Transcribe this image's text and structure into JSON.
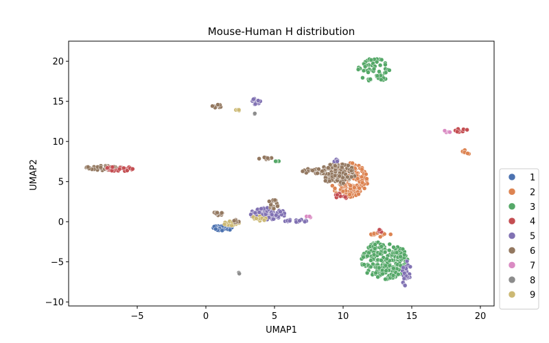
{
  "chart_data": {
    "type": "scatter",
    "title": "Mouse-Human H distribution",
    "xlabel": "UMAP1",
    "ylabel": "UMAP2",
    "xlim": [
      -10,
      21
    ],
    "ylim": [
      -10.5,
      22.5
    ],
    "xticks": [
      -5,
      0,
      5,
      10,
      15,
      20
    ],
    "yticks": [
      -10,
      -5,
      0,
      5,
      10,
      15,
      20
    ],
    "legend_position": "lower-right outside",
    "categories": [
      {
        "name": "1",
        "color": "#4c72b0"
      },
      {
        "name": "2",
        "color": "#dd8452"
      },
      {
        "name": "3",
        "color": "#55a868"
      },
      {
        "name": "4",
        "color": "#c44e52"
      },
      {
        "name": "5",
        "color": "#8172b3"
      },
      {
        "name": "6",
        "color": "#937860"
      },
      {
        "name": "7",
        "color": "#da8bc3"
      },
      {
        "name": "8",
        "color": "#8c8c8c"
      },
      {
        "name": "9",
        "color": "#ccb974"
      }
    ],
    "clusters": [
      {
        "category": "3",
        "cx": 12.3,
        "cy": 18.9,
        "rx": 1.2,
        "ry": 1.6,
        "n": 60
      },
      {
        "category": "6",
        "cx": 0.8,
        "cy": 14.4,
        "rx": 0.4,
        "ry": 0.25,
        "n": 8
      },
      {
        "category": "9",
        "cx": 2.5,
        "cy": 13.9,
        "rx": 0.4,
        "ry": 0.1,
        "n": 4
      },
      {
        "category": "5",
        "cx": 3.7,
        "cy": 15.0,
        "rx": 0.45,
        "ry": 0.4,
        "n": 12
      },
      {
        "category": "8",
        "cx": 3.6,
        "cy": 13.4,
        "rx": 0.1,
        "ry": 0.1,
        "n": 2
      },
      {
        "category": "7",
        "cx": 17.4,
        "cy": 11.2,
        "rx": 0.5,
        "ry": 0.3,
        "n": 4
      },
      {
        "category": "4",
        "cx": 18.6,
        "cy": 11.4,
        "rx": 0.5,
        "ry": 0.3,
        "n": 10
      },
      {
        "category": "2",
        "cx": 18.9,
        "cy": 8.6,
        "rx": 0.3,
        "ry": 0.35,
        "n": 8
      },
      {
        "category": "6",
        "cx": -7.5,
        "cy": 6.7,
        "rx": 1.4,
        "ry": 0.3,
        "n": 40
      },
      {
        "category": "4",
        "cx": -6.2,
        "cy": 6.6,
        "rx": 1.1,
        "ry": 0.3,
        "n": 25
      },
      {
        "category": "6",
        "cx": 4.3,
        "cy": 7.9,
        "rx": 0.6,
        "ry": 0.15,
        "n": 8
      },
      {
        "category": "3",
        "cx": 5.1,
        "cy": 7.5,
        "rx": 0.3,
        "ry": 0.1,
        "n": 4
      },
      {
        "category": "2",
        "cx": 10.4,
        "cy": 5.2,
        "rx": 1.4,
        "ry": 2.2,
        "n": 180
      },
      {
        "category": "6",
        "cx": 9.6,
        "cy": 6.0,
        "rx": 1.3,
        "ry": 1.3,
        "n": 120
      },
      {
        "category": "6",
        "cx": 8.0,
        "cy": 6.3,
        "rx": 1.0,
        "ry": 0.35,
        "n": 25
      },
      {
        "category": "4",
        "cx": 10.0,
        "cy": 3.2,
        "rx": 0.6,
        "ry": 0.35,
        "n": 8
      },
      {
        "category": "5",
        "cx": 9.5,
        "cy": 7.6,
        "rx": 0.3,
        "ry": 0.2,
        "n": 4
      },
      {
        "category": "5",
        "cx": 4.5,
        "cy": 1.0,
        "rx": 1.3,
        "ry": 0.75,
        "n": 80
      },
      {
        "category": "6",
        "cx": 4.9,
        "cy": 2.2,
        "rx": 0.4,
        "ry": 0.6,
        "n": 15
      },
      {
        "category": "9",
        "cx": 3.8,
        "cy": 0.4,
        "rx": 0.7,
        "ry": 0.3,
        "n": 15
      },
      {
        "category": "5",
        "cx": 6.5,
        "cy": 0.1,
        "rx": 0.9,
        "ry": 0.25,
        "n": 15
      },
      {
        "category": "7",
        "cx": 7.5,
        "cy": 0.6,
        "rx": 0.2,
        "ry": 0.15,
        "n": 3
      },
      {
        "category": "6",
        "cx": 0.9,
        "cy": 1.0,
        "rx": 0.4,
        "ry": 0.2,
        "n": 12
      },
      {
        "category": "1",
        "cx": 1.2,
        "cy": -0.8,
        "rx": 0.8,
        "ry": 0.35,
        "n": 30
      },
      {
        "category": "9",
        "cx": 1.9,
        "cy": -0.2,
        "rx": 0.6,
        "ry": 0.3,
        "n": 15
      },
      {
        "category": "6",
        "cx": 2.2,
        "cy": 0.1,
        "rx": 0.5,
        "ry": 0.2,
        "n": 8
      },
      {
        "category": "8",
        "cx": 2.4,
        "cy": -6.4,
        "rx": 0.1,
        "ry": 0.1,
        "n": 2
      },
      {
        "category": "3",
        "cx": 13.0,
        "cy": -4.8,
        "rx": 1.7,
        "ry": 2.4,
        "n": 220
      },
      {
        "category": "2",
        "cx": 12.8,
        "cy": -1.6,
        "rx": 0.9,
        "ry": 0.3,
        "n": 12
      },
      {
        "category": "4",
        "cx": 12.7,
        "cy": -1.2,
        "rx": 0.5,
        "ry": 0.2,
        "n": 5
      },
      {
        "category": "5",
        "cx": 14.6,
        "cy": -6.5,
        "rx": 0.35,
        "ry": 1.6,
        "n": 25
      }
    ]
  }
}
